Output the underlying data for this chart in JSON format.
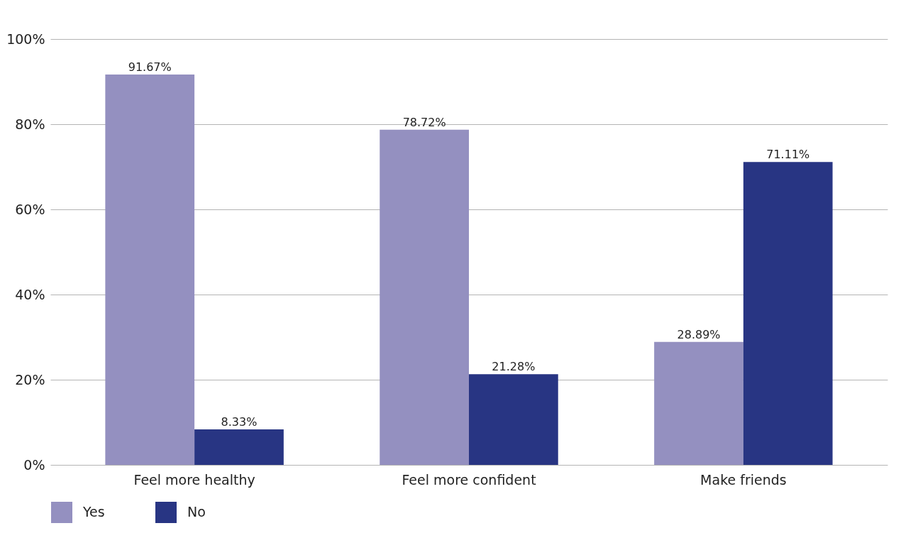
{
  "chart_data": {
    "type": "bar",
    "categories": [
      "Feel more healthy",
      "Feel more confident",
      "Make friends"
    ],
    "series": [
      {
        "name": "Yes",
        "color": "#9490c0",
        "values": [
          91.67,
          78.72,
          28.89
        ],
        "value_labels": [
          "91.67%",
          "78.72%",
          "28.89%"
        ]
      },
      {
        "name": "No",
        "color": "#283583",
        "values": [
          8.33,
          21.28,
          71.11
        ],
        "value_labels": [
          "8.33%",
          "21.28%",
          "71.11%"
        ]
      }
    ],
    "ylim": [
      0,
      100
    ],
    "yticks": [
      {
        "value": 0,
        "label": "0%"
      },
      {
        "value": 20,
        "label": "20%"
      },
      {
        "value": 40,
        "label": "40%"
      },
      {
        "value": 60,
        "label": "60%"
      },
      {
        "value": 80,
        "label": "80%"
      },
      {
        "value": 100,
        "label": "100%"
      }
    ],
    "grid": "y",
    "legend": "bottom"
  }
}
